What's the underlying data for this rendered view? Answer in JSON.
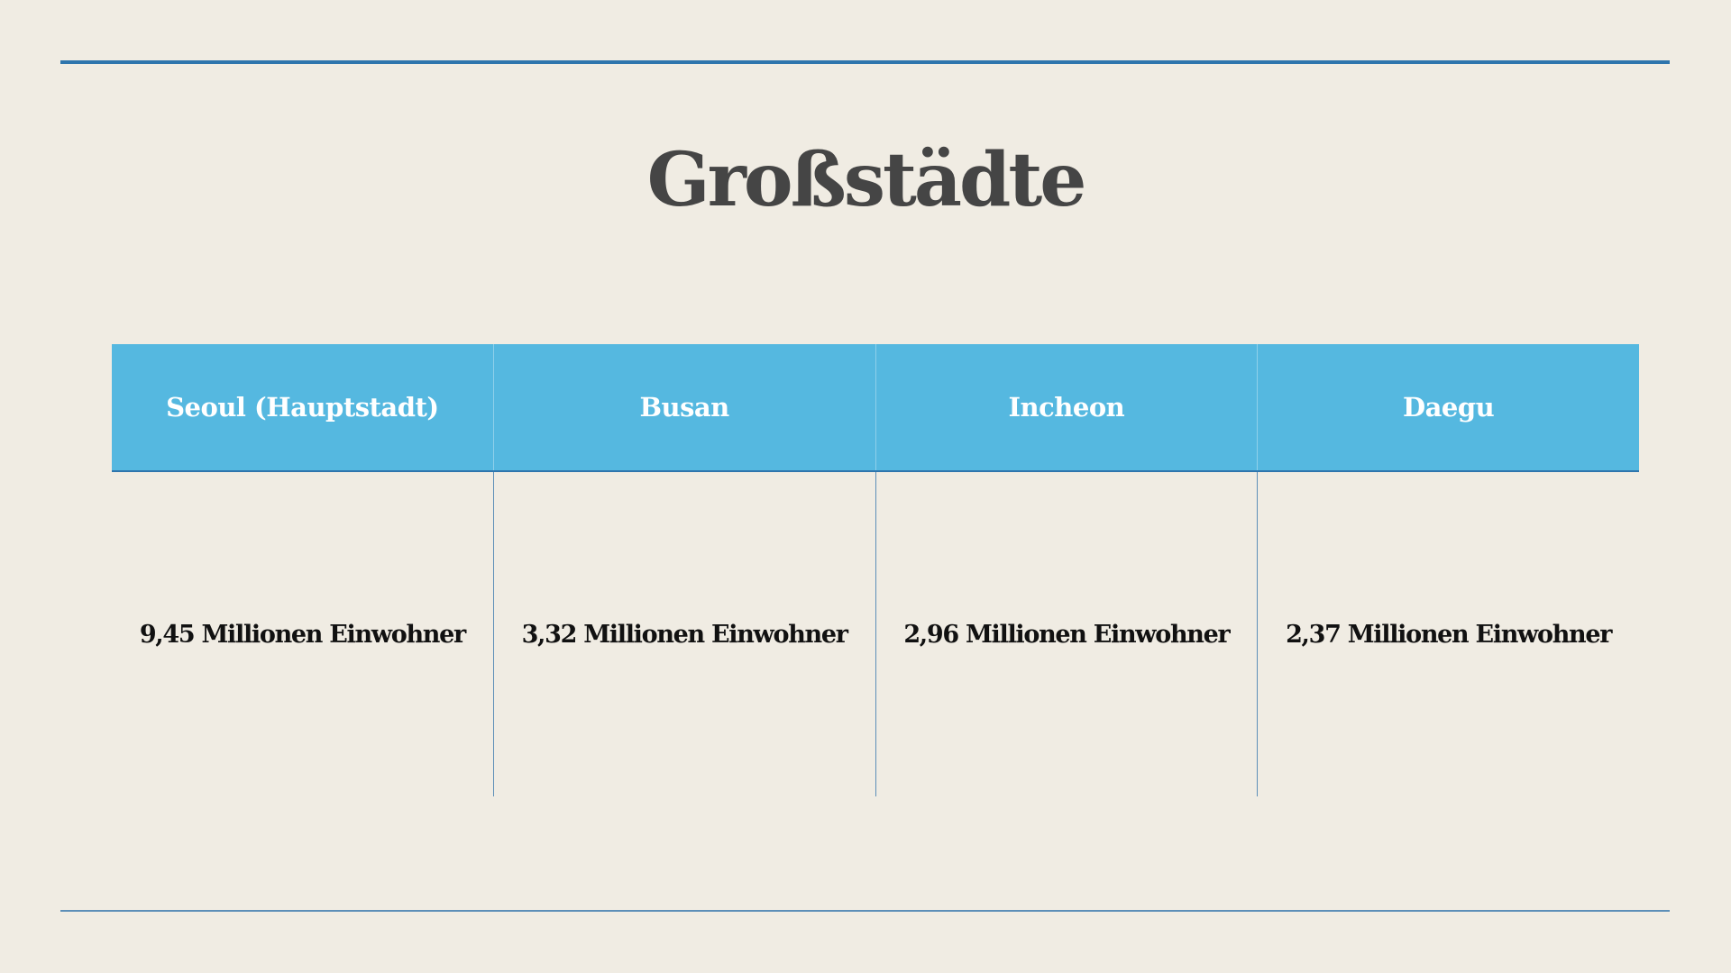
{
  "slide": {
    "title": "Großstädte"
  },
  "table": {
    "headers": [
      "Seoul (Hauptstadt)",
      "Busan",
      "Incheon",
      "Daegu"
    ],
    "rows": [
      [
        "9,45 Millionen Einwohner",
        "3,32 Millionen Einwohner",
        "2,96 Millionen Einwohner",
        "2,37 Millionen Einwohner"
      ]
    ]
  },
  "colors": {
    "background": "#f0ece3",
    "rule": "#2e75ad",
    "header_fill": "#55b8e0",
    "title_text": "#454545"
  }
}
